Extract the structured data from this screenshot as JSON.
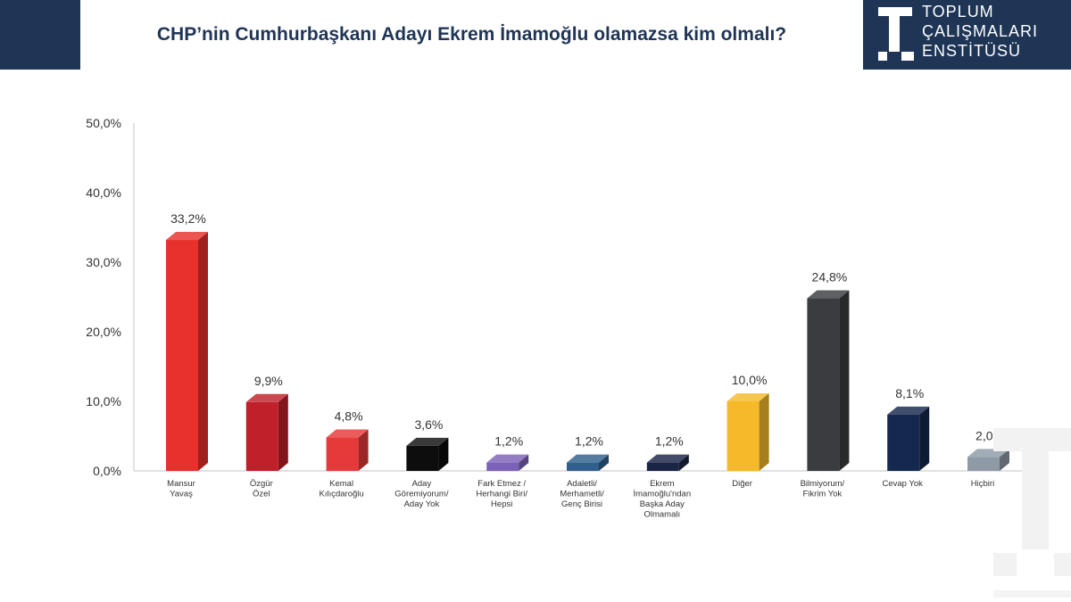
{
  "header": {
    "title": "CHP’nin Cumhurbaşkanı Adayı Ekrem İmamoğlu olamazsa kim olmalı?",
    "logo_lines": [
      "TOPLUM",
      "ÇALIŞMALARI",
      "ENSTİTÜSÜ"
    ]
  },
  "colors": {
    "header_bg": "#1f3556"
  },
  "chart_data": {
    "type": "bar",
    "title": "CHP’nin Cumhurbaşkanı Adayı Ekrem İmamoğlu olamazsa kim olmalı?",
    "xlabel": "",
    "ylabel": "",
    "ylim": [
      0,
      50
    ],
    "yticks": [
      "0,0%",
      "10,0%",
      "20,0%",
      "30,0%",
      "40,0%",
      "50,0%"
    ],
    "grid": false,
    "categories": [
      [
        "Mansur",
        "Yavaş"
      ],
      [
        "Özgür",
        "Özel"
      ],
      [
        "Kemal",
        "Kılıçdaroğlu"
      ],
      [
        "Aday",
        "Göremiyorum/",
        "Aday Yok"
      ],
      [
        "Fark Etmez /",
        "Herhangi Biri/",
        "Hepsi"
      ],
      [
        "Adaletli/",
        "Merhametli/",
        "Genç Birisi"
      ],
      [
        "Ekrem",
        "İmamoğlu'ndan",
        "Başka Aday",
        "Olmamalı"
      ],
      [
        "Diğer"
      ],
      [
        "Bilmiyorum/",
        "Fikrim Yok"
      ],
      [
        "Cevap Yok"
      ],
      [
        "Hiçbiri"
      ]
    ],
    "values": [
      33.2,
      9.9,
      4.8,
      3.6,
      1.2,
      1.2,
      1.2,
      10.0,
      24.8,
      8.1,
      2.0
    ],
    "labels": [
      "33,2%",
      "9,9%",
      "4,8%",
      "3,6%",
      "1,2%",
      "1,2%",
      "1,2%",
      "10,0%",
      "24,8%",
      "8,1%",
      "2,0%"
    ],
    "colors": [
      "#e8312c",
      "#c0202a",
      "#e6393a",
      "#0d0d0d",
      "#7b62b8",
      "#2f5f8c",
      "#1a2444",
      "#f5b92a",
      "#3a3c3f",
      "#15284d",
      "#8e9aa6"
    ]
  }
}
